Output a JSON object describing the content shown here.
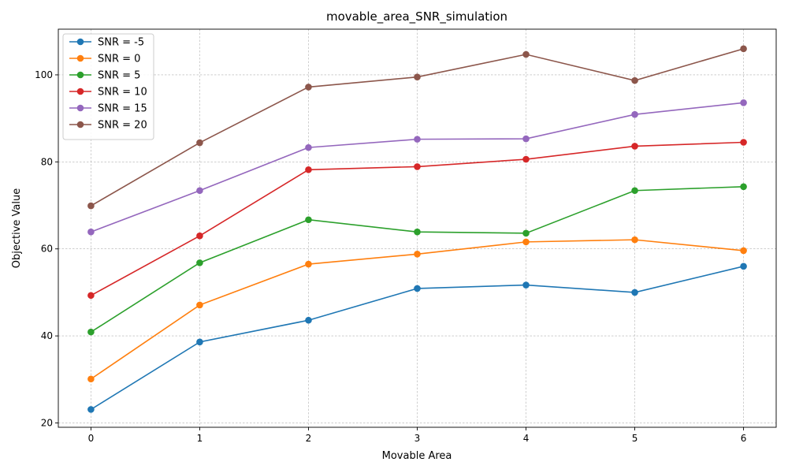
{
  "chart_data": {
    "type": "line",
    "title": "movable_area_SNR_simulation",
    "xlabel": "Movable Area",
    "ylabel": "Objective Value",
    "x": [
      0,
      1,
      2,
      3,
      4,
      5,
      6
    ],
    "xlim": [
      -0.3,
      6.3
    ],
    "ylim": [
      19,
      110.5
    ],
    "xticks": [
      0,
      1,
      2,
      3,
      4,
      5,
      6
    ],
    "yticks": [
      20,
      40,
      60,
      80,
      100
    ],
    "grid": true,
    "legend_position": "top-left",
    "series": [
      {
        "name": "SNR = -5",
        "color": "#1f77b4",
        "values": [
          23.1,
          38.6,
          43.6,
          50.9,
          51.7,
          50.0,
          56.0
        ]
      },
      {
        "name": "SNR = 0",
        "color": "#ff7f0e",
        "values": [
          30.1,
          47.1,
          56.5,
          58.8,
          61.6,
          62.1,
          59.6
        ]
      },
      {
        "name": "SNR = 5",
        "color": "#2ca02c",
        "values": [
          40.9,
          56.8,
          66.7,
          63.9,
          63.6,
          73.4,
          74.3
        ]
      },
      {
        "name": "SNR = 10",
        "color": "#d62728",
        "values": [
          49.3,
          63.0,
          78.2,
          78.9,
          80.6,
          83.6,
          84.5
        ]
      },
      {
        "name": "SNR = 15",
        "color": "#9467bd",
        "values": [
          63.9,
          73.4,
          83.3,
          85.2,
          85.3,
          90.9,
          93.6
        ]
      },
      {
        "name": "SNR = 20",
        "color": "#8c564b",
        "values": [
          69.9,
          84.4,
          97.2,
          99.5,
          104.7,
          98.7,
          106.0
        ]
      }
    ]
  }
}
